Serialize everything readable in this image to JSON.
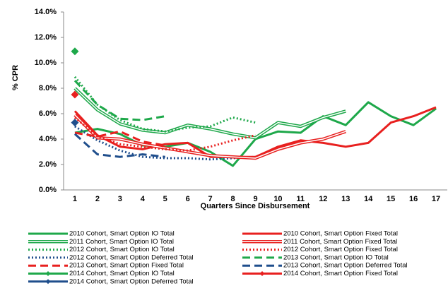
{
  "chart_data": {
    "type": "line",
    "y_label": "% CPR",
    "x_label": "Quarters Since Disbursement",
    "categories": [
      "1",
      "2",
      "3",
      "4",
      "5",
      "6",
      "7",
      "8",
      "9",
      "10",
      "11",
      "12",
      "13",
      "14",
      "15",
      "16",
      "17"
    ],
    "ylim": [
      0,
      14
    ],
    "yticks": [
      {
        "value": 0,
        "label": "0.0%"
      },
      {
        "value": 2,
        "label": "2.0%"
      },
      {
        "value": 4,
        "label": "4.0%"
      },
      {
        "value": 6,
        "label": "6.0%"
      },
      {
        "value": 8,
        "label": "8.0%"
      },
      {
        "value": 10,
        "label": "10.0%"
      },
      {
        "value": 12,
        "label": "12.0%"
      },
      {
        "value": 14,
        "label": "14.0%"
      }
    ],
    "series": [
      {
        "name": "2010 Cohort, Smart Option IO Total",
        "color": "#1ea84a",
        "style": "solid",
        "values": [
          4.5,
          4.8,
          4.4,
          3.5,
          3.4,
          3.7,
          3.0,
          1.9,
          4.0,
          4.6,
          4.5,
          5.8,
          5.1,
          6.9,
          5.8,
          5.1,
          6.4
        ]
      },
      {
        "name": "2011 Cohort, Smart Option IO Total",
        "color": "#1ea84a",
        "style": "double",
        "values": [
          8.0,
          6.3,
          5.2,
          4.7,
          4.5,
          5.1,
          4.8,
          4.4,
          4.1,
          5.3,
          5.0,
          5.7,
          6.2,
          null,
          null,
          null,
          null
        ]
      },
      {
        "name": "2012 Cohort, Smart Option IO Total",
        "color": "#1ea84a",
        "style": "dotted",
        "values": [
          8.9,
          6.7,
          5.5,
          4.8,
          4.6,
          4.9,
          5.0,
          5.7,
          5.3,
          null,
          null,
          null,
          null,
          null,
          null,
          null,
          null
        ]
      },
      {
        "name": "2012 Cohort, Smart Option Deferred Total",
        "color": "#1f4e8c",
        "style": "dotted",
        "values": [
          5.0,
          3.9,
          3.1,
          2.6,
          2.5,
          2.5,
          2.4,
          2.5,
          2.6,
          null,
          null,
          null,
          null,
          null,
          null,
          null,
          null
        ]
      },
      {
        "name": "2013 Cohort, Smart Option Fixed Total",
        "color": "#e8201f",
        "style": "dashed",
        "values": [
          4.5,
          4.2,
          4.6,
          3.8,
          3.5,
          null,
          null,
          null,
          null,
          null,
          null,
          null,
          null,
          null,
          null,
          null,
          null
        ]
      },
      {
        "name": "2014 Cohort, Smart Option IO Total",
        "color": "#1ea84a",
        "style": "marker",
        "values": [
          10.9,
          null,
          null,
          null,
          null,
          null,
          null,
          null,
          null,
          null,
          null,
          null,
          null,
          null,
          null,
          null,
          null
        ]
      },
      {
        "name": "2014 Cohort, Smart Option Deferred Total",
        "color": "#1f4e8c",
        "style": "marker",
        "values": [
          5.3,
          null,
          null,
          null,
          null,
          null,
          null,
          null,
          null,
          null,
          null,
          null,
          null,
          null,
          null,
          null,
          null
        ]
      },
      {
        "name": "2010 Cohort, Smart Option Fixed Total",
        "color": "#e8201f",
        "style": "solid",
        "values": [
          6.2,
          4.3,
          3.4,
          3.2,
          3.6,
          3.7,
          2.6,
          2.6,
          2.6,
          3.4,
          3.9,
          3.7,
          3.4,
          3.7,
          5.3,
          5.8,
          6.5
        ]
      },
      {
        "name": "2011 Cohort, Smart Option Fixed Total",
        "color": "#e8201f",
        "style": "double",
        "values": [
          5.9,
          4.1,
          4.0,
          3.6,
          3.3,
          3.0,
          2.7,
          2.6,
          2.5,
          3.2,
          3.7,
          4.0,
          4.6,
          null,
          null,
          null,
          null
        ]
      },
      {
        "name": "2012 Cohort, Smart Option Fixed Total",
        "color": "#e8201f",
        "style": "dotted",
        "values": [
          5.7,
          4.2,
          3.6,
          3.4,
          3.2,
          3.1,
          3.4,
          3.9,
          4.3,
          null,
          null,
          null,
          null,
          null,
          null,
          null,
          null
        ]
      },
      {
        "name": "2013 Cohort, Smart Option IO Total",
        "color": "#1ea84a",
        "style": "dashed",
        "values": [
          8.6,
          6.7,
          5.6,
          5.5,
          5.8,
          null,
          null,
          null,
          null,
          null,
          null,
          null,
          null,
          null,
          null,
          null,
          null
        ]
      },
      {
        "name": "2013 Cohort, Smart Option Deferred Total",
        "color": "#1f4e8c",
        "style": "dashed",
        "values": [
          4.4,
          2.8,
          2.6,
          2.8,
          2.6,
          null,
          null,
          null,
          null,
          null,
          null,
          null,
          null,
          null,
          null,
          null,
          null
        ]
      },
      {
        "name": "2014 Cohort, Smart Option Fixed Total",
        "color": "#e8201f",
        "style": "marker",
        "values": [
          7.5,
          null,
          null,
          null,
          null,
          null,
          null,
          null,
          null,
          null,
          null,
          null,
          null,
          null,
          null,
          null,
          null
        ]
      }
    ]
  }
}
